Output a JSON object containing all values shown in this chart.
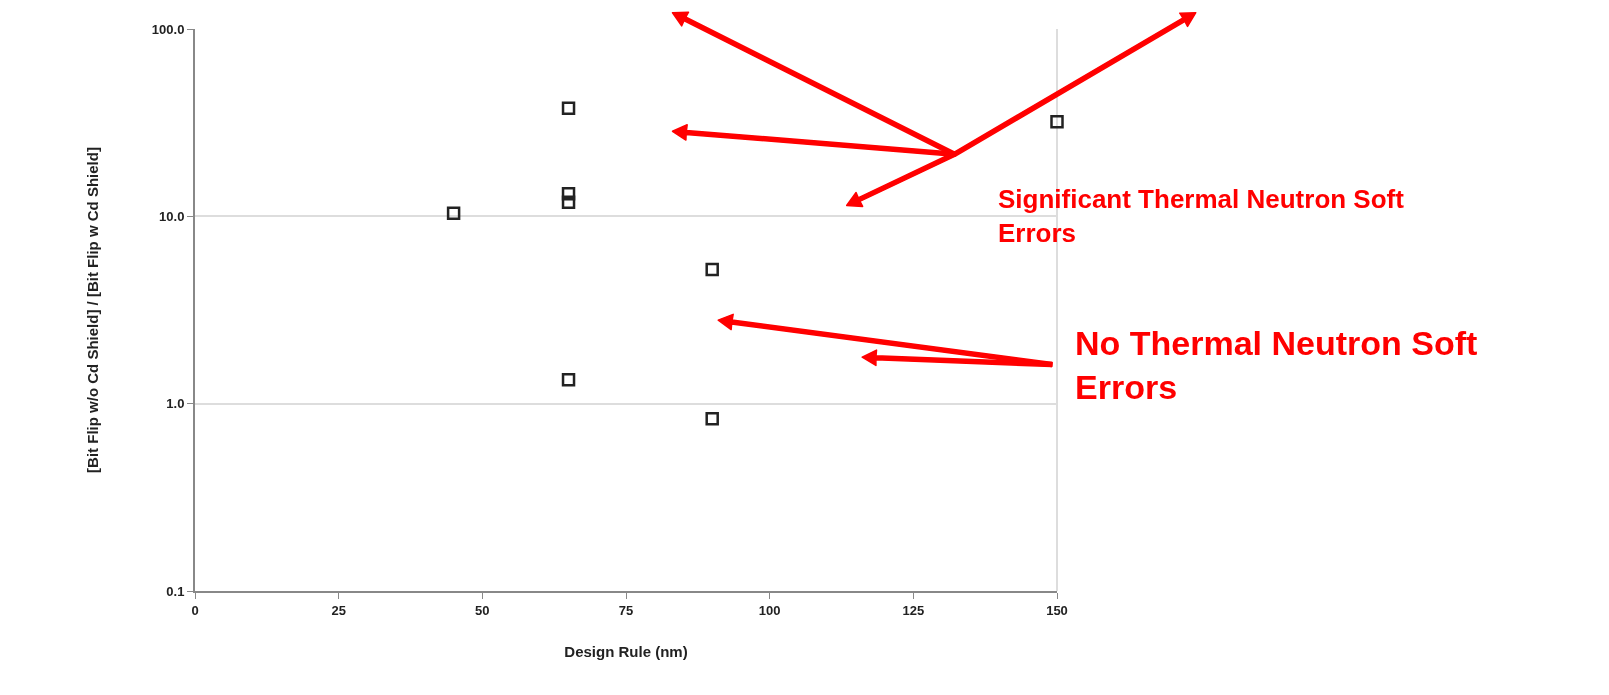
{
  "chart_data": {
    "type": "scatter",
    "xlabel": "Design Rule (nm)",
    "ylabel": "[Bit Flip w/o Cd Shield] / [Bit Flip w Cd Shield]",
    "x": [
      45,
      65,
      65,
      65,
      65,
      90,
      90,
      150
    ],
    "values": [
      10.4,
      37.7,
      13.2,
      11.9,
      1.34,
      5.2,
      0.83,
      32
    ],
    "color": "#222222",
    "marker": "square",
    "log": "y",
    "grid": "y",
    "legend": false,
    "xlim": [
      0,
      150
    ],
    "xticks": [
      0,
      25,
      50,
      75,
      100,
      125,
      150
    ],
    "ylim": [
      0.1,
      100
    ],
    "yticks": [
      0.1,
      {
        "value": 1,
        "label": "1.0"
      },
      {
        "value": 10,
        "label": "10.0"
      },
      {
        "value": 100,
        "label": "100.0"
      }
    ],
    "annotations": [
      "Significant Thermal Neutron Soft Errors",
      "No Thermal Neutron Soft Errors"
    ]
  }
}
